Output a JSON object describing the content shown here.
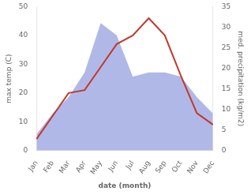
{
  "chart_data": {
    "type": "line",
    "xlabel": "date (month)",
    "ylabel": "max temp (C)",
    "y2label": "med. precipitation (kg/m2)",
    "categories": [
      "Jan",
      "Feb",
      "Mar",
      "Apr",
      "May",
      "Jun",
      "Jul",
      "Aug",
      "Sep",
      "Oct",
      "Nov",
      "Dec"
    ],
    "series": [
      {
        "type": "line",
        "color": "#c0392b",
        "values": [
          4,
          12,
          20,
          21,
          29,
          37,
          40,
          46,
          40,
          26,
          13,
          9
        ]
      },
      {
        "type": "area",
        "color": "#b0b8e8",
        "axis": "y2",
        "values": [
          4,
          9,
          13,
          19,
          31,
          28,
          18,
          19,
          19,
          18,
          13,
          9
        ]
      }
    ],
    "ylim": [
      0,
      50
    ],
    "yticks": [
      0,
      10,
      20,
      30,
      40,
      50
    ],
    "y2lim": [
      0,
      35
    ],
    "y2ticks": [
      0,
      5,
      10,
      15,
      20,
      25,
      30,
      35
    ],
    "grid": false
  }
}
